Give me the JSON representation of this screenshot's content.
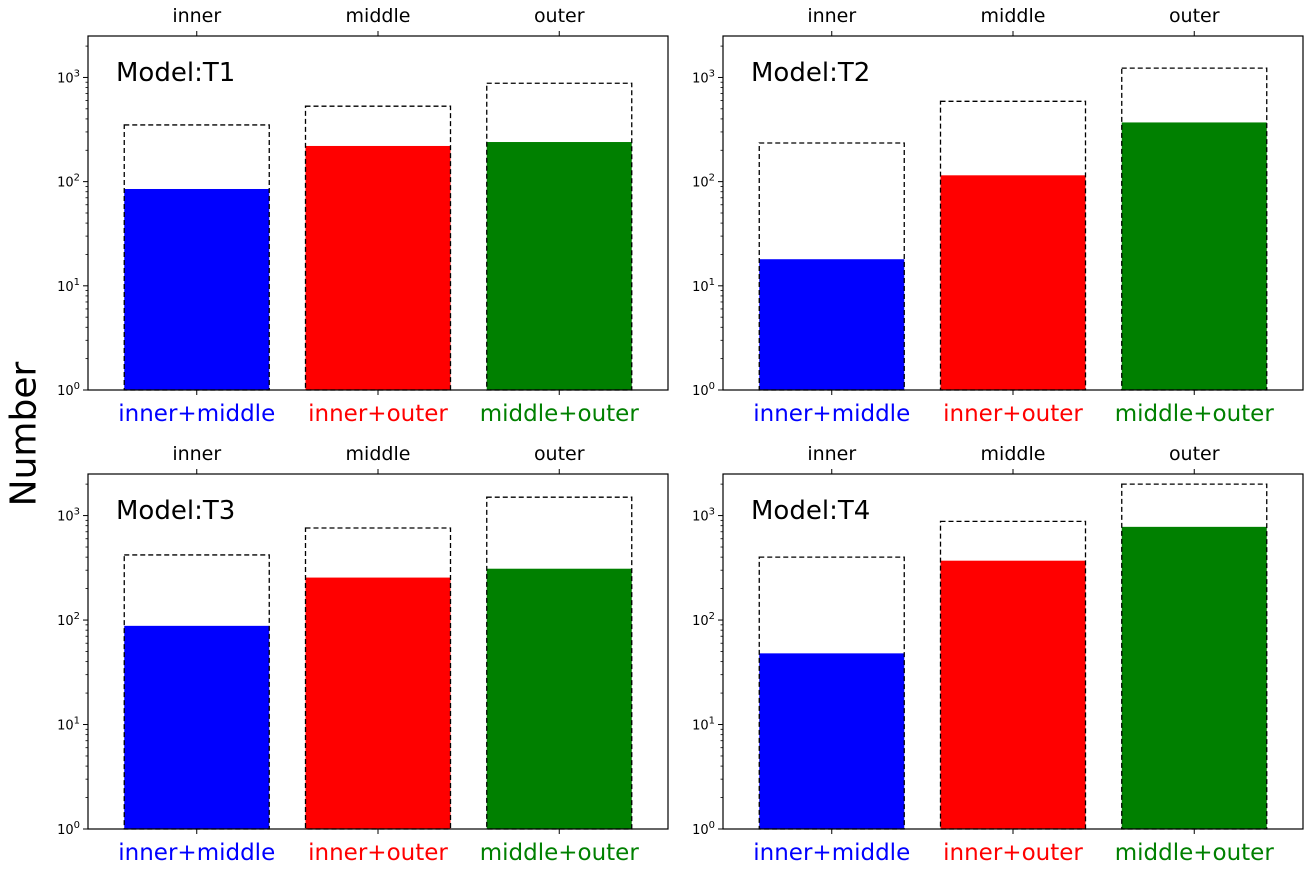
{
  "figure": {
    "ylabel": "Number"
  },
  "colors": {
    "inner+middle": "#0000ff",
    "inner+outer": "#ff0000",
    "middle+outer": "#008000"
  },
  "chart_data": [
    {
      "type": "bar",
      "title": "Model:T1",
      "yscale": "log",
      "ylim": [
        1,
        2500
      ],
      "yticks": [
        1,
        10,
        100,
        1000
      ],
      "categories": [
        "inner+middle",
        "inner+outer",
        "middle+outer"
      ],
      "top_categories": [
        "inner",
        "middle",
        "outer"
      ],
      "series": [
        {
          "style": "filled",
          "values": [
            85,
            220,
            240
          ]
        },
        {
          "style": "dashed-outline",
          "values": [
            350,
            530,
            880
          ]
        }
      ]
    },
    {
      "type": "bar",
      "title": "Model:T2",
      "yscale": "log",
      "ylim": [
        1,
        2500
      ],
      "yticks": [
        1,
        10,
        100,
        1000
      ],
      "categories": [
        "inner+middle",
        "inner+outer",
        "middle+outer"
      ],
      "top_categories": [
        "inner",
        "middle",
        "outer"
      ],
      "series": [
        {
          "style": "filled",
          "values": [
            18,
            115,
            370
          ]
        },
        {
          "style": "dashed-outline",
          "values": [
            235,
            590,
            1230
          ]
        }
      ]
    },
    {
      "type": "bar",
      "title": "Model:T3",
      "yscale": "log",
      "ylim": [
        1,
        2500
      ],
      "yticks": [
        1,
        10,
        100,
        1000
      ],
      "categories": [
        "inner+middle",
        "inner+outer",
        "middle+outer"
      ],
      "top_categories": [
        "inner",
        "middle",
        "outer"
      ],
      "series": [
        {
          "style": "filled",
          "values": [
            88,
            255,
            310
          ]
        },
        {
          "style": "dashed-outline",
          "values": [
            420,
            760,
            1500
          ]
        }
      ]
    },
    {
      "type": "bar",
      "title": "Model:T4",
      "yscale": "log",
      "ylim": [
        1,
        2500
      ],
      "yticks": [
        1,
        10,
        100,
        1000
      ],
      "categories": [
        "inner+middle",
        "inner+outer",
        "middle+outer"
      ],
      "top_categories": [
        "inner",
        "middle",
        "outer"
      ],
      "series": [
        {
          "style": "filled",
          "values": [
            48,
            370,
            780
          ]
        },
        {
          "style": "dashed-outline",
          "values": [
            400,
            880,
            2000
          ]
        }
      ]
    }
  ]
}
